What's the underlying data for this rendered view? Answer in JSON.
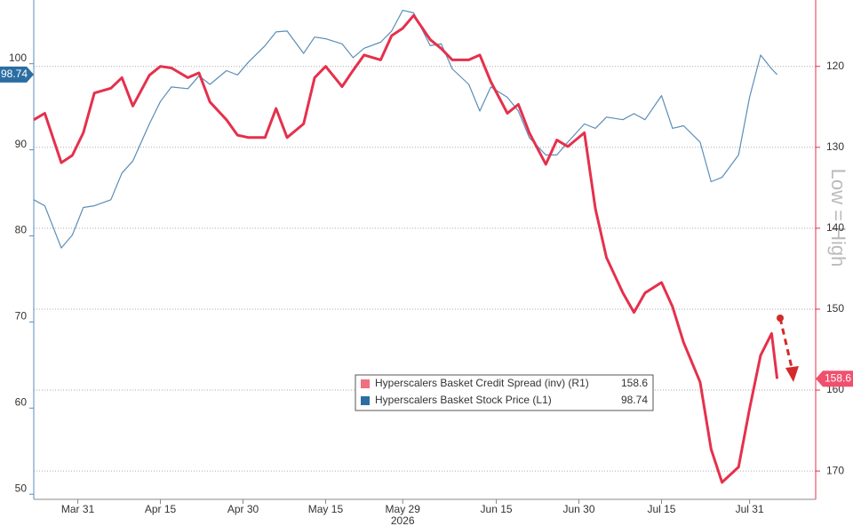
{
  "chart_data": {
    "type": "line",
    "xlabel": "2026",
    "side_label": "Low = High",
    "x": [
      "2026-03-23",
      "2026-03-25",
      "2026-03-28",
      "2026-03-30",
      "2026-04-01",
      "2026-04-03",
      "2026-04-06",
      "2026-04-08",
      "2026-04-10",
      "2026-04-13",
      "2026-04-15",
      "2026-04-17",
      "2026-04-20",
      "2026-04-22",
      "2026-04-24",
      "2026-04-27",
      "2026-04-29",
      "2026-05-01",
      "2026-05-04",
      "2026-05-06",
      "2026-05-08",
      "2026-05-11",
      "2026-05-13",
      "2026-05-15",
      "2026-05-18",
      "2026-05-20",
      "2026-05-22",
      "2026-05-25",
      "2026-05-27",
      "2026-05-29",
      "2026-05-31",
      "2026-06-03",
      "2026-06-05",
      "2026-06-07",
      "2026-06-10",
      "2026-06-12",
      "2026-06-14",
      "2026-06-17",
      "2026-06-19",
      "2026-06-21",
      "2026-06-24",
      "2026-06-26",
      "2026-06-28",
      "2026-07-01",
      "2026-07-03",
      "2026-07-05",
      "2026-07-08",
      "2026-07-10",
      "2026-07-12",
      "2026-07-15",
      "2026-07-17",
      "2026-07-19",
      "2026-07-22",
      "2026-07-24",
      "2026-07-26",
      "2026-07-29",
      "2026-07-31",
      "2026-08-02",
      "2026-08-04",
      "2026-08-05"
    ],
    "series": [
      {
        "name": "Hyperscalers Basket Credit Spread (inv) (R1)",
        "color": "#e5304c",
        "axis": "y2",
        "values": [
          126.6,
          125.8,
          131.9,
          131.0,
          128.2,
          123.3,
          122.7,
          121.4,
          124.9,
          121.1,
          120.0,
          120.2,
          121.4,
          120.8,
          124.4,
          126.6,
          128.5,
          128.8,
          128.8,
          125.2,
          128.8,
          127.1,
          121.4,
          120.0,
          122.5,
          120.5,
          118.6,
          119.2,
          116.2,
          115.3,
          113.7,
          116.7,
          117.8,
          119.2,
          119.2,
          118.6,
          121.9,
          125.8,
          124.7,
          128.2,
          132.1,
          129.1,
          129.9,
          128.2,
          137.6,
          143.6,
          148.0,
          150.4,
          148.0,
          146.7,
          149.7,
          154.1,
          159.0,
          167.3,
          171.4,
          169.5,
          162.3,
          155.7,
          153.0,
          158.6
        ]
      },
      {
        "name": "Hyperscalers Basket Stock Price (L1)",
        "color": "#5b8db8",
        "axis": "y",
        "values": [
          84.2,
          83.5,
          78.6,
          80.1,
          83.3,
          83.5,
          84.2,
          87.3,
          88.7,
          93.0,
          95.6,
          97.3,
          97.1,
          98.6,
          97.6,
          99.2,
          98.7,
          100.2,
          102.1,
          103.7,
          103.8,
          101.2,
          103.1,
          102.9,
          102.3,
          100.7,
          101.8,
          102.5,
          103.8,
          106.2,
          105.9,
          102.1,
          102.3,
          99.4,
          97.6,
          94.5,
          97.3,
          96.1,
          94.5,
          91.4,
          89.4,
          89.4,
          90.9,
          93.0,
          92.5,
          93.8,
          93.5,
          94.2,
          93.5,
          96.3,
          92.5,
          92.8,
          90.9,
          86.3,
          86.8,
          89.4,
          96.1,
          101.0,
          99.4,
          98.74
        ]
      }
    ],
    "xlim": [
      "2026-03-23",
      "2026-08-12"
    ],
    "xticks": [
      {
        "value": "2026-03-31",
        "label": "Mar 31"
      },
      {
        "value": "2026-04-15",
        "label": "Apr 15"
      },
      {
        "value": "2026-04-30",
        "label": "Apr 30"
      },
      {
        "value": "2026-05-15",
        "label": "May 15"
      },
      {
        "value": "2026-05-29",
        "label": "May 29"
      },
      {
        "value": "2026-06-15",
        "label": "Jun 15"
      },
      {
        "value": "2026-06-30",
        "label": "Jun 30"
      },
      {
        "value": "2026-07-15",
        "label": "Jul 15"
      },
      {
        "value": "2026-07-31",
        "label": "Jul 31"
      }
    ],
    "ylim": [
      49.4,
      107.4
    ],
    "yticks": [
      50,
      60,
      70,
      80,
      90,
      100
    ],
    "y2lim": [
      111.8,
      173.5
    ],
    "y2_inverted": true,
    "y2ticks": [
      120,
      130,
      140,
      150,
      160,
      170
    ],
    "grid": true
  }
}
